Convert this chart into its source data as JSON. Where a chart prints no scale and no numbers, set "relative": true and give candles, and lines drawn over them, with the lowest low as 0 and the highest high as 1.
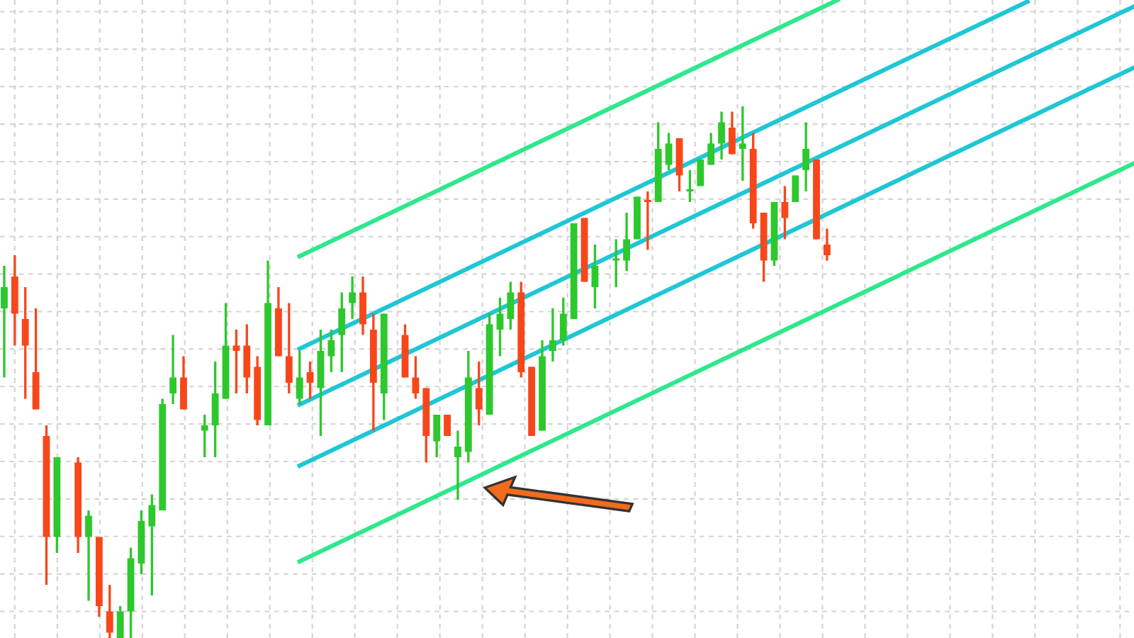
{
  "chart_data": {
    "type": "candlestick",
    "relative": true,
    "grid": true,
    "categories": [
      null,
      null,
      null,
      null,
      null,
      null,
      null,
      null,
      null,
      null,
      null,
      null,
      null,
      null,
      null,
      null,
      null,
      null,
      null,
      null,
      null,
      null,
      null,
      null,
      null,
      null,
      null,
      null,
      null,
      null,
      null,
      null,
      null,
      null,
      null,
      null,
      null,
      null,
      null,
      null,
      null,
      null,
      null,
      null,
      null,
      null,
      null,
      null,
      null,
      null,
      null,
      null,
      null,
      null,
      null,
      null,
      null,
      null,
      null,
      null,
      null,
      null,
      null,
      null,
      null,
      null,
      null,
      null,
      null,
      null,
      null,
      null,
      null,
      null,
      null,
      null,
      null,
      null,
      null,
      null,
      null,
      null,
      null,
      null,
      null,
      null,
      null,
      null,
      null,
      null,
      null,
      null,
      null,
      null,
      null,
      null,
      null,
      null,
      null,
      null,
      null,
      null,
      null,
      null,
      null,
      null,
      null,
      null
    ],
    "ohlc": [
      [
        0.62,
        0.7,
        0.49,
        0.66
      ],
      [
        0.68,
        0.72,
        0.55,
        0.61
      ],
      [
        0.6,
        0.66,
        0.45,
        0.55
      ],
      [
        0.5,
        0.62,
        0.43,
        0.43
      ],
      [
        0.38,
        0.4,
        0.1,
        0.19
      ],
      [
        0.19,
        0.34,
        0.16,
        0.34
      ],
      null,
      [
        0.33,
        0.34,
        0.16,
        0.19
      ],
      [
        0.19,
        0.24,
        0.07,
        0.23
      ],
      [
        0.19,
        0.19,
        0.04,
        0.06
      ],
      [
        0.05,
        0.1,
        0,
        0.01
      ],
      [
        0.0,
        0.06,
        0.0,
        0.05
      ],
      [
        0.05,
        0.17,
        0,
        0.15
      ],
      [
        0.14,
        0.24,
        0.12,
        0.22
      ],
      [
        0.21,
        0.27,
        0.08,
        0.25
      ],
      [
        0.24,
        0.45,
        0.24,
        0.44
      ],
      [
        0.46,
        0.57,
        0.44,
        0.49
      ],
      [
        0.49,
        0.53,
        0.43,
        0.43
      ],
      null,
      [
        0.39,
        0.42,
        0.34,
        0.4
      ],
      [
        0.4,
        0.52,
        0.34,
        0.46
      ],
      [
        0.45,
        0.63,
        0.45,
        0.55
      ],
      [
        0.55,
        0.58,
        0.46,
        0.54
      ],
      [
        0.55,
        0.59,
        0.46,
        0.49
      ],
      [
        0.51,
        0.53,
        0.4,
        0.41
      ],
      [
        0.4,
        0.71,
        0.4,
        0.63
      ],
      [
        0.62,
        0.66,
        0.53,
        0.53
      ],
      [
        0.53,
        0.63,
        0.46,
        0.48
      ],
      [
        0.45,
        0.54,
        0.44,
        0.49
      ],
      [
        0.5,
        0.52,
        0.45,
        0.48
      ],
      [
        0.47,
        0.58,
        0.38,
        0.54
      ],
      [
        0.53,
        0.58,
        0.5,
        0.56
      ],
      [
        0.57,
        0.65,
        0.5,
        0.62
      ],
      [
        0.63,
        0.68,
        0.6,
        0.65
      ],
      [
        0.65,
        0.68,
        0.57,
        0.59
      ],
      [
        0.58,
        0.61,
        0.39,
        0.48
      ],
      [
        0.46,
        0.61,
        0.41,
        0.61
      ],
      null,
      [
        0.57,
        0.59,
        0.49,
        0.49
      ],
      [
        0.49,
        0.53,
        0.45,
        0.46
      ],
      [
        0.47,
        0.47,
        0.33,
        0.38
      ],
      [
        0.37,
        0.42,
        0.34,
        0.42
      ],
      [
        0.42,
        0.42,
        0.38,
        0.38
      ],
      [
        0.34,
        0.39,
        0.26,
        0.36
      ],
      [
        0.35,
        0.54,
        0.33,
        0.49
      ],
      [
        0.47,
        0.52,
        0.4,
        0.43
      ],
      [
        0.42,
        0.61,
        0.42,
        0.59
      ],
      [
        0.58,
        0.64,
        0.53,
        0.61
      ],
      [
        0.6,
        0.67,
        0.58,
        0.65
      ],
      [
        0.65,
        0.67,
        0.49,
        0.5
      ],
      [
        0.51,
        0.51,
        0.38,
        0.38
      ],
      [
        0.39,
        0.56,
        0.39,
        0.53
      ],
      [
        0.54,
        0.62,
        0.52,
        0.56
      ],
      [
        0.56,
        0.64,
        0.55,
        0.61
      ],
      [
        0.6,
        0.78,
        0.6,
        0.78
      ],
      [
        0.79,
        0.79,
        0.67,
        0.67
      ],
      [
        0.66,
        0.74,
        0.62,
        0.7
      ],
      null,
      [
        0.71,
        0.75,
        0.66,
        0.71
      ],
      [
        0.71,
        0.8,
        0.69,
        0.75
      ],
      [
        0.75,
        0.83,
        0.75,
        0.83
      ],
      [
        0.82,
        0.84,
        0.73,
        0.82
      ],
      [
        0.82,
        0.97,
        0.82,
        0.92
      ],
      [
        0.89,
        0.95,
        0.88,
        0.93
      ],
      [
        0.94,
        0.94,
        0.84,
        0.87
      ],
      [
        0.84,
        0.88,
        0.82,
        0.84
      ],
      [
        0.85,
        0.9,
        0.85,
        0.9
      ],
      [
        0.89,
        0.95,
        0.89,
        0.93
      ],
      [
        0.93,
        0.99,
        0.9,
        0.97
      ],
      [
        0.96,
        0.99,
        0.91,
        0.91
      ],
      [
        0.92,
        1,
        0.86,
        0.93
      ],
      [
        0.92,
        0.95,
        0.77,
        0.78
      ],
      [
        0.8,
        0.8,
        0.67,
        0.71
      ],
      [
        0.71,
        0.82,
        0.7,
        0.82
      ],
      [
        0.82,
        0.85,
        0.75,
        0.79
      ],
      [
        0.82,
        0.87,
        0.82,
        0.87
      ],
      [
        0.88,
        0.97,
        0.84,
        0.92
      ],
      [
        0.9,
        0.9,
        0.75,
        0.75
      ],
      [
        0.74,
        0.77,
        0.71,
        0.72
      ],
      null,
      null,
      null,
      null,
      null,
      null,
      null,
      null,
      null,
      null,
      null,
      null,
      null,
      null,
      null,
      null,
      null,
      null,
      null,
      null,
      null,
      null,
      null,
      null,
      null,
      null,
      null,
      null,
      null
    ],
    "colors": [
      "#2dc82d",
      "#f7471a",
      "#f7471a",
      "#f7471a",
      "#f7471a",
      "#2dc82d",
      null,
      "#f7471a",
      "#2dc82d",
      "#f7471a",
      "#f7471a",
      "#2dc82d",
      "#2dc82d",
      "#2dc82d",
      "#2dc82d",
      "#2dc82d",
      "#2dc82d",
      "#f7471a",
      null,
      "#2dc82d",
      "#2dc82d",
      "#2dc82d",
      "#f7471a",
      "#f7471a",
      "#f7471a",
      "#2dc82d",
      "#f7471a",
      "#f7471a",
      "#2dc82d",
      "#f7471a",
      "#2dc82d",
      "#2dc82d",
      "#2dc82d",
      "#2dc82d",
      "#f7471a",
      "#f7471a",
      "#2dc82d",
      null,
      "#f7471a",
      "#f7471a",
      "#f7471a",
      "#2dc82d",
      "#f7471a",
      "#2dc82d",
      "#2dc82d",
      "#f7471a",
      "#2dc82d",
      "#2dc82d",
      "#2dc82d",
      "#f7471a",
      "#f7471a",
      "#2dc82d",
      "#2dc82d",
      "#2dc82d",
      "#2dc82d",
      "#f7471a",
      "#2dc82d",
      null,
      "#2dc82d",
      "#2dc82d",
      "#2dc82d",
      "#f7471a",
      "#2dc82d",
      "#2dc82d",
      "#f7471a",
      "#2dc82d",
      "#2dc82d",
      "#2dc82d",
      "#2dc82d",
      "#f7471a",
      "#2dc82d",
      "#f7471a",
      "#f7471a",
      "#2dc82d",
      "#f7471a",
      "#2dc82d",
      "#2dc82d",
      "#f7471a",
      "#f7471a",
      null,
      null,
      null,
      null,
      null,
      null,
      null,
      null,
      null,
      null,
      null,
      null,
      null,
      null,
      null,
      null,
      null,
      null,
      null,
      null,
      null,
      null,
      null,
      null,
      null,
      null,
      null,
      null,
      null
    ],
    "series": [
      {
        "type": "line",
        "color": "#2fe88c",
        "values": [
          null,
          null,
          null,
          null,
          null,
          null,
          null,
          null,
          null,
          null,
          null,
          null,
          null,
          null,
          null,
          null,
          null,
          null,
          null,
          null,
          null,
          null,
          null,
          null,
          null,
          null,
          null,
          null,
          0.718,
          null,
          null,
          null,
          null,
          null,
          null,
          null,
          null,
          null,
          null,
          null,
          null,
          null,
          null,
          null,
          null,
          null,
          null,
          null,
          null,
          null,
          null,
          null,
          null,
          null,
          null,
          null,
          null,
          null,
          null,
          null,
          null,
          null,
          null,
          null,
          null,
          null,
          null,
          null,
          null,
          null,
          null,
          null,
          null,
          null,
          null,
          null,
          null,
          null,
          null,
          1.2,
          null,
          null,
          null,
          null,
          null,
          null,
          null,
          null,
          null,
          null,
          null,
          null,
          null,
          null,
          null,
          null,
          null,
          null,
          null,
          null,
          null,
          null,
          null,
          null,
          null,
          null,
          null,
          null
        ]
      },
      {
        "type": "line",
        "color": "#1fc6d6",
        "values": [
          null,
          null,
          null,
          null,
          null,
          null,
          null,
          null,
          null,
          null,
          null,
          null,
          null,
          null,
          null,
          null,
          null,
          null,
          null,
          null,
          null,
          null,
          null,
          null,
          null,
          null,
          null,
          null,
          0.544,
          null,
          null,
          null,
          null,
          null,
          null,
          null,
          null,
          null,
          null,
          null,
          null,
          null,
          null,
          null,
          null,
          null,
          null,
          null,
          null,
          null,
          null,
          null,
          null,
          null,
          null,
          null,
          null,
          null,
          null,
          null,
          null,
          null,
          null,
          null,
          null,
          null,
          null,
          null,
          null,
          null,
          null,
          null,
          null,
          null,
          null,
          null,
          null,
          null,
          null,
          null,
          null,
          null,
          null,
          null,
          null,
          null,
          null,
          null,
          null,
          null,
          null,
          null,
          null,
          null,
          null,
          null,
          null,
          1.197,
          null,
          null,
          null,
          null,
          null,
          null,
          null,
          null,
          null,
          null
        ]
      },
      {
        "type": "line",
        "color": "#1fc6d6",
        "values": [
          null,
          null,
          null,
          null,
          null,
          null,
          null,
          null,
          null,
          null,
          null,
          null,
          null,
          null,
          null,
          null,
          null,
          null,
          null,
          null,
          null,
          null,
          null,
          null,
          null,
          null,
          null,
          null,
          0.439,
          null,
          null,
          null,
          null,
          null,
          null,
          null,
          null,
          null,
          null,
          null,
          null,
          null,
          null,
          null,
          null,
          null,
          null,
          null,
          null,
          null,
          null,
          null,
          null,
          null,
          null,
          null,
          null,
          null,
          null,
          null,
          null,
          null,
          null,
          null,
          null,
          null,
          null,
          null,
          null,
          null,
          null,
          null,
          null,
          null,
          null,
          null,
          null,
          null,
          null,
          null,
          null,
          null,
          null,
          null,
          null,
          null,
          null,
          null,
          null,
          null,
          null,
          null,
          null,
          null,
          null,
          null,
          null,
          null,
          null,
          null,
          null,
          null,
          null,
          null,
          null,
          null,
          null,
          1.187
        ]
      },
      {
        "type": "line",
        "color": "#1fc6d6",
        "values": [
          null,
          null,
          null,
          null,
          null,
          null,
          null,
          null,
          null,
          null,
          null,
          null,
          null,
          null,
          null,
          null,
          null,
          null,
          null,
          null,
          null,
          null,
          null,
          null,
          null,
          null,
          null,
          null,
          0.324,
          null,
          null,
          null,
          null,
          null,
          null,
          null,
          null,
          null,
          null,
          null,
          null,
          null,
          null,
          null,
          null,
          null,
          null,
          null,
          null,
          null,
          null,
          null,
          null,
          null,
          null,
          null,
          null,
          null,
          null,
          null,
          null,
          null,
          null,
          null,
          null,
          null,
          null,
          null,
          null,
          null,
          null,
          null,
          null,
          null,
          null,
          null,
          null,
          null,
          null,
          null,
          null,
          null,
          null,
          null,
          null,
          null,
          null,
          null,
          null,
          null,
          null,
          null,
          null,
          null,
          null,
          null,
          null,
          null,
          null,
          null,
          null,
          null,
          null,
          null,
          null,
          null,
          null,
          1.072
        ]
      },
      {
        "type": "line",
        "color": "#2fe88c",
        "values": [
          null,
          null,
          null,
          null,
          null,
          null,
          null,
          null,
          null,
          null,
          null,
          null,
          null,
          null,
          null,
          null,
          null,
          null,
          null,
          null,
          null,
          null,
          null,
          null,
          null,
          null,
          null,
          null,
          0.144,
          null,
          null,
          null,
          null,
          null,
          null,
          null,
          null,
          null,
          null,
          null,
          null,
          null,
          null,
          null,
          null,
          null,
          null,
          null,
          null,
          null,
          null,
          null,
          null,
          null,
          null,
          null,
          null,
          null,
          null,
          null,
          null,
          null,
          null,
          null,
          null,
          null,
          null,
          null,
          null,
          null,
          null,
          null,
          null,
          null,
          null,
          null,
          null,
          null,
          null,
          null,
          null,
          null,
          null,
          null,
          null,
          null,
          null,
          null,
          null,
          null,
          null,
          null,
          null,
          null,
          null,
          null,
          null,
          null,
          null,
          null,
          null,
          null,
          null,
          null,
          null,
          null,
          null,
          0.892
        ]
      }
    ]
  }
}
